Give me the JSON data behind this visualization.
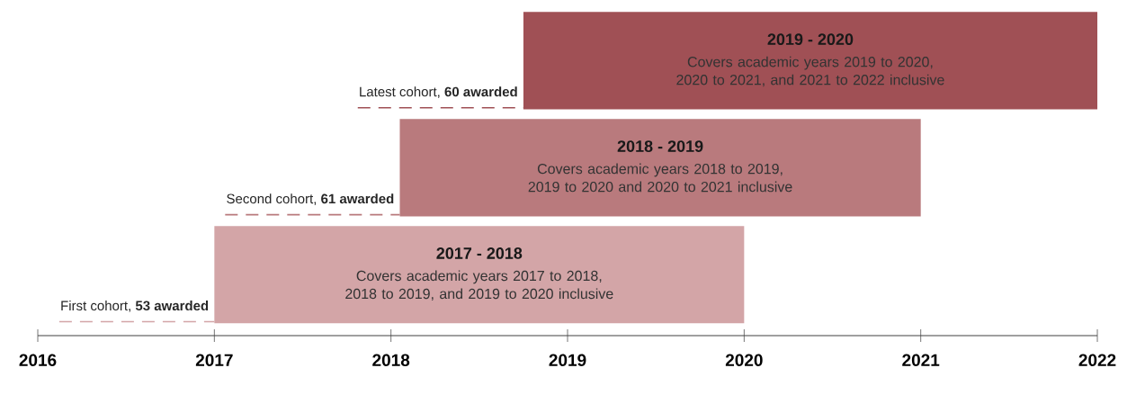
{
  "chart_data": {
    "type": "bar",
    "orientation": "horizontal",
    "categories": [
      "2019 - 2020",
      "2018 - 2019",
      "2017 - 2018"
    ],
    "base": [
      2018.75,
      2018.05,
      2017
    ],
    "values": [
      3.25,
      2.95,
      3
    ],
    "colors": [
      "#a05055",
      "#b97a7d",
      "#d3a5a7"
    ],
    "xlim": [
      2016,
      2022
    ],
    "xticks": [
      2016,
      2017,
      2018,
      2019,
      2020,
      2021,
      2022
    ],
    "annotations": [
      "Covers academic years 2019 to 2020, 2020 to 2021, and 2021 to 2022 inclusive",
      "Covers academic years 2018 to 2019, 2019 to 2020 and 2020 to 2021 inclusive",
      "Covers academic years 2017 to 2018, 2018 to 2019, and 2019 to 2020 inclusive",
      "Latest cohort, **60 awarded**",
      "Second cohort, **61 awarded**",
      "First cohort, **53 awarded**"
    ]
  }
}
